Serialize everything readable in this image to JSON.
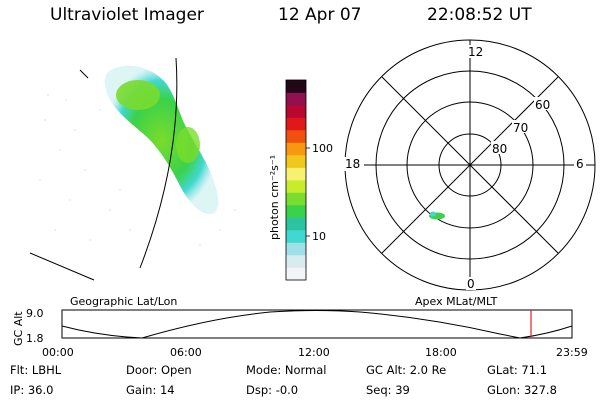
{
  "header": {
    "instrument": "Ultraviolet Imager",
    "date": "12 Apr 07",
    "time": "22:08:52 UT"
  },
  "colorbar": {
    "unit_label": "photon cm⁻²s⁻¹",
    "ticks": [
      "100",
      "10"
    ],
    "colors": [
      "#f2f4f8",
      "#d8ecf0",
      "#9fe0e6",
      "#40d8d0",
      "#2cc4a0",
      "#3ad24a",
      "#7adc2c",
      "#c8ec2c",
      "#f8f070",
      "#f0c81c",
      "#f89810",
      "#f05010",
      "#e01818",
      "#b80830",
      "#901050",
      "#200818"
    ]
  },
  "polar_plot": {
    "mlt_labels": {
      "top": "12",
      "left": "18",
      "right": "6",
      "bottom": "0"
    },
    "lat_labels": [
      "60",
      "70",
      "80"
    ]
  },
  "timeline": {
    "left_title": "Geographic Lat/Lon",
    "right_title": "Apex MLat/MLT",
    "axis_label": "GC Alt",
    "y_labels": [
      "9.0",
      "1.8"
    ],
    "x_labels": [
      "00:00",
      "06:00",
      "12:00",
      "18:00",
      "23:59"
    ],
    "marker_color": "#e02020"
  },
  "status": {
    "row1": [
      {
        "k": "Flt:",
        "v": "LBHL"
      },
      {
        "k": "Door:",
        "v": "Open"
      },
      {
        "k": "Mode:",
        "v": "Normal"
      },
      {
        "k": "GC Alt:",
        "v": "2.0 Re"
      },
      {
        "k": "GLat:",
        "v": "71.1"
      }
    ],
    "row2": [
      {
        "k": "IP:",
        "v": "36.0"
      },
      {
        "k": "Gain:",
        "v": "14"
      },
      {
        "k": "Dsp:",
        "v": "-0.0"
      },
      {
        "k": "Seq:",
        "v": "39"
      },
      {
        "k": "GLon:",
        "v": "327.8"
      }
    ]
  }
}
